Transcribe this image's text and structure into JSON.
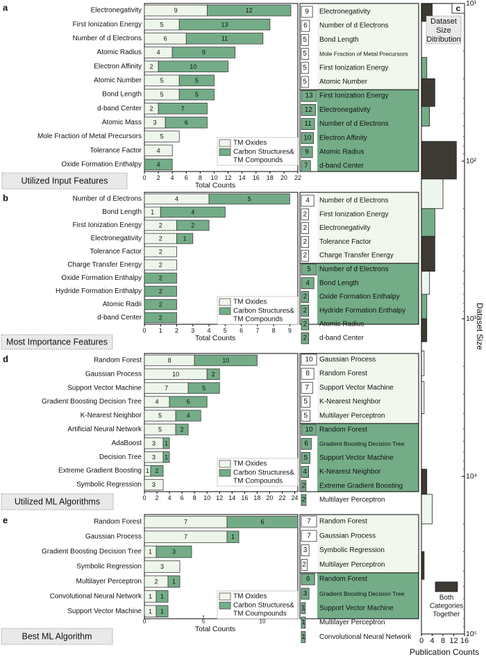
{
  "figure": {
    "legend_labels": [
      "TM Oxides",
      "Carbon Structures&",
      "TM Compounds"
    ],
    "legend_labels_e": [
      "TM Oxides",
      "Carbon Structures&",
      "TM Coumpounds"
    ],
    "colors": {
      "oxides": "#eef5ea",
      "carbon": "#74ac88",
      "both": "#3d3a33",
      "bar_edge": "#3b3b3b"
    }
  },
  "chart_data": [
    {
      "panel": "a",
      "type": "bar",
      "orientation": "horizontal",
      "stacked": true,
      "box_label": "Utilized Input Features",
      "xlabel": "Total Counts",
      "xlim": [
        0,
        22
      ],
      "xticks": [
        0,
        2,
        4,
        6,
        8,
        10,
        12,
        14,
        16,
        18,
        20,
        22
      ],
      "categories": [
        "Electronegativity",
        "First Ionization Energy",
        "Number of d Electrons",
        "Atomic Radius",
        "Electron Affinity",
        "Atomic Number",
        "Bond Length",
        "d-band Center",
        "Atomic Mass",
        "Mole Fraction of Metal Precursors",
        "Tolerance Factor",
        "Oxide Formation Enthalpy"
      ],
      "series": [
        {
          "name": "TM Oxides",
          "values": [
            9,
            5,
            6,
            4,
            2,
            5,
            5,
            2,
            3,
            5,
            4,
            0
          ]
        },
        {
          "name": "Carbon Structures& TM Compounds",
          "values": [
            12,
            13,
            11,
            9,
            10,
            5,
            5,
            7,
            6,
            0,
            0,
            4
          ]
        }
      ],
      "top_lists": {
        "oxides": {
          "counts": [
            9,
            6,
            5,
            5,
            5,
            5
          ],
          "labels": [
            "Electronegativity",
            "Number of d Electrons",
            "Bond Length",
            "Mole Fraction of Metal Precursors",
            "First Ionization Energy",
            "Atomic Number"
          ]
        },
        "carbon": {
          "counts": [
            13,
            12,
            11,
            10,
            9,
            7
          ],
          "labels": [
            "First Ionization Energy",
            "Electronegativity",
            "Number of d Electrons",
            "Electron Affinity",
            "Atomic Radius",
            "d-band Center"
          ]
        }
      }
    },
    {
      "panel": "b",
      "type": "bar",
      "orientation": "horizontal",
      "stacked": true,
      "box_label": "Most Importance Features",
      "xlabel": "Total Counts",
      "xlim": [
        0,
        9.5
      ],
      "xticks": [
        0,
        1,
        2,
        3,
        4,
        5,
        6,
        7,
        8,
        9
      ],
      "categories": [
        "Number of d Electrons",
        "Bond Length",
        "First Ionization Energy",
        "Electronegativity",
        "Tolerance Factor",
        "Charge Transfer Energy",
        "Oxide Formation Enthalpy",
        "Hydride Formation Enthalpy",
        "Atomic Radii",
        "d-band Center"
      ],
      "series": [
        {
          "name": "TM Oxides",
          "values": [
            4,
            1,
            2,
            2,
            2,
            2,
            0,
            0,
            0,
            0
          ]
        },
        {
          "name": "Carbon Structures& TM Compounds",
          "values": [
            5,
            4,
            2,
            1,
            0,
            0,
            2,
            2,
            2,
            2
          ]
        }
      ],
      "top_lists": {
        "oxides": {
          "counts": [
            4,
            2,
            2,
            2,
            2
          ],
          "labels": [
            "Number of d Electrons",
            "First Ionization Energy",
            "Electronegativity",
            "Tolerance Factor",
            "Charge Transfer Energy"
          ]
        },
        "carbon": {
          "counts": [
            5,
            4,
            2,
            2,
            2,
            2
          ],
          "labels": [
            "Number of d Electrons",
            "Bond Length",
            "Oxide Formation Enthalpy",
            "Hydride Formation Enthalpy",
            "Atomic Radius",
            "d-band Center"
          ]
        }
      }
    },
    {
      "panel": "d",
      "type": "bar",
      "orientation": "horizontal",
      "stacked": true,
      "box_label": "Utilized ML Algorithms",
      "xlabel": "",
      "xlim": [
        0,
        24.5
      ],
      "xticks": [
        0,
        2,
        4,
        6,
        8,
        10,
        12,
        14,
        16,
        18,
        20,
        22,
        24
      ],
      "categories": [
        "Random Forest",
        "Gaussian Process",
        "Support Vector Machine",
        "Gradient Boosting Decision Tree",
        "K-Nearest Neighbor",
        "Artificial Neural Network",
        "AdaBoost",
        "Decision Tree",
        "Extreme Gradient Boosting",
        "Symbolic Regression"
      ],
      "series": [
        {
          "name": "TM Oxides",
          "values": [
            8,
            10,
            7,
            4,
            5,
            5,
            3,
            3,
            1,
            3
          ]
        },
        {
          "name": "Carbon Structures& TM Compounds",
          "values": [
            10,
            2,
            5,
            6,
            4,
            2,
            1,
            1,
            2,
            0
          ]
        }
      ],
      "top_lists": {
        "oxides": {
          "counts": [
            10,
            8,
            7,
            5,
            5
          ],
          "labels": [
            "Gaussian Process",
            "Random Forest",
            "Support Vector Machine",
            "K-Nearest Neighbor",
            "Multilayer Perceptron"
          ]
        },
        "carbon": {
          "counts": [
            10,
            6,
            5,
            4,
            2,
            2
          ],
          "labels": [
            "Random Forest",
            "Gradient Boosting Decision Tree",
            "Support Vector Machine",
            "K-Nearest Neighbor",
            "Extreme Gradient Boosting",
            "Multilayer Perceptron"
          ]
        }
      }
    },
    {
      "panel": "e",
      "type": "bar",
      "orientation": "horizontal",
      "stacked": true,
      "box_label": "Best ML Algorithm",
      "xlabel": "Total Counts",
      "xlim": [
        0,
        13
      ],
      "xticks": [
        0,
        5,
        10
      ],
      "categories": [
        "Random Forest",
        "Gaussian Process",
        "Gradient Boosting Decision Tree",
        "Symbolic Regression",
        "Multilayer Perceptron",
        "Convolutional Neural Network",
        "Support Vector Machine"
      ],
      "series": [
        {
          "name": "TM Oxides",
          "values": [
            7,
            7,
            1,
            3,
            2,
            1,
            1
          ]
        },
        {
          "name": "Carbon Structures& TM Compounds",
          "values": [
            6,
            1,
            3,
            0,
            1,
            1,
            1
          ]
        }
      ],
      "top_lists": {
        "oxides": {
          "counts": [
            7,
            7,
            3,
            2
          ],
          "labels": [
            "Random Forest",
            "Gaussian Process",
            "Symbolic Regression",
            "Multilayer Perceptron"
          ]
        },
        "carbon": {
          "counts": [
            6,
            3,
            1,
            1,
            1
          ],
          "labels": [
            "Random Forest",
            "Gradient Boosting Decision Tree",
            "Support Vector Machine",
            "Multilayer Perceptron",
            "Convolutional Neural Network"
          ]
        }
      }
    },
    {
      "panel": "c",
      "type": "bar",
      "orientation": "horizontal",
      "title": "Dataset Size Ditribution",
      "ylabel": "Dataset Size",
      "xlabel": "Publication Counts",
      "yscale": "log",
      "ylim": [
        10,
        100000
      ],
      "ytick_labels": [
        "10¹",
        "10²",
        "10³",
        "10⁴",
        "10⁵"
      ],
      "xlim": [
        0,
        16
      ],
      "xtick_labels": [
        "0",
        "4",
        "8",
        "12",
        "16"
      ],
      "legend": "Both Categories Together",
      "bins": [
        {
          "low": 10,
          "high": 13,
          "value": 4,
          "group": "both"
        },
        {
          "low": 22,
          "high": 30,
          "value": 2,
          "group": "carbon"
        },
        {
          "low": 30,
          "high": 45,
          "value": 5,
          "group": "both"
        },
        {
          "low": 45,
          "high": 60,
          "value": 3,
          "group": "carbon"
        },
        {
          "low": 75,
          "high": 130,
          "value": 13,
          "group": "both"
        },
        {
          "low": 130,
          "high": 200,
          "value": 8,
          "group": "oxides"
        },
        {
          "low": 200,
          "high": 300,
          "value": 5,
          "group": "carbon"
        },
        {
          "low": 300,
          "high": 500,
          "value": 5,
          "group": "both"
        },
        {
          "low": 500,
          "high": 700,
          "value": 3,
          "group": "oxides"
        },
        {
          "low": 700,
          "high": 1000,
          "value": 2,
          "group": "carbon"
        },
        {
          "low": 1000,
          "high": 1400,
          "value": 2,
          "group": "both"
        },
        {
          "low": 1600,
          "high": 2300,
          "value": 1,
          "group": "oxides"
        },
        {
          "low": 2500,
          "high": 4000,
          "value": 1,
          "group": "oxides"
        },
        {
          "low": 9000,
          "high": 13000,
          "value": 2,
          "group": "both"
        },
        {
          "low": 13000,
          "high": 20000,
          "value": 4,
          "group": "oxides"
        },
        {
          "low": 30000,
          "high": 45000,
          "value": 1,
          "group": "both"
        }
      ]
    }
  ]
}
